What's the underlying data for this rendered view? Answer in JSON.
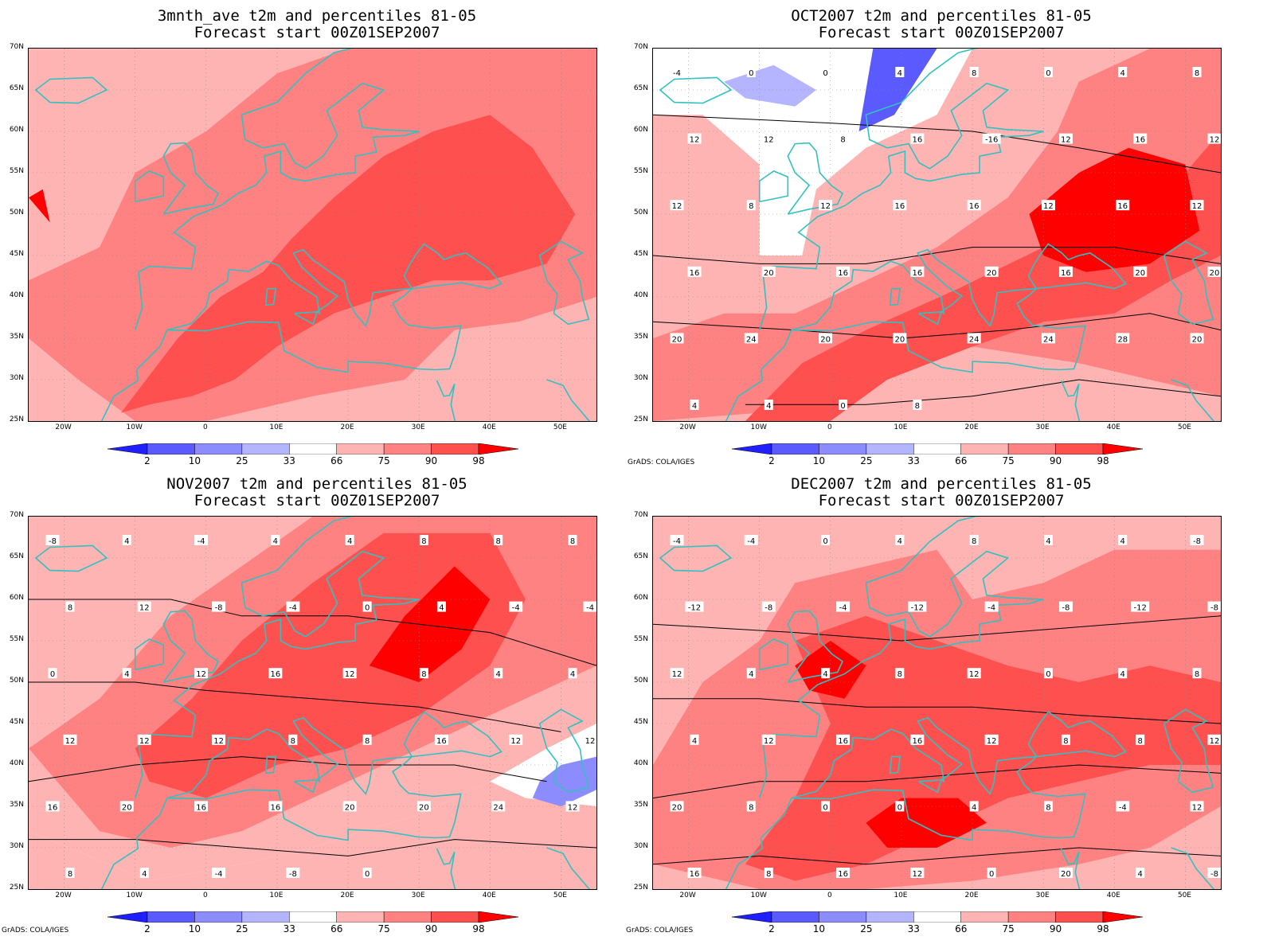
{
  "colors": {
    "coast": "#33c0c0",
    "contour": "#000000",
    "below_2": "#2020ff",
    "below_10": "#5a5aff",
    "below_25": "#8c8cff",
    "below_33": "#b4b4ff",
    "above_66": "#ffb4b4",
    "above_75": "#ff8282",
    "above_90": "#ff5050",
    "above_98": "#ff0000"
  },
  "lat_labels": [
    "70N",
    "65N",
    "60N",
    "55N",
    "50N",
    "45N",
    "40N",
    "35N",
    "30N",
    "25N"
  ],
  "lon_labels": [
    "20W",
    "10W",
    "0",
    "10E",
    "20E",
    "30E",
    "40E",
    "50E"
  ],
  "colorbar": {
    "labels": [
      "2",
      "10",
      "25",
      "33",
      "66",
      "75",
      "90",
      "98"
    ]
  },
  "credit": "GrADS: COLA/IGES",
  "panels": [
    {
      "title_line1": "3mnth_ave t2m and percentiles 81-05",
      "title_line2": "Forecast start 00Z01SEP2007",
      "contour_labels": []
    },
    {
      "title_line1": "OCT2007 t2m and percentiles 81-05",
      "title_line2": "Forecast start 00Z01SEP2007",
      "contour_labels": [
        "-4",
        "0",
        "0",
        "4",
        "8",
        "0",
        "4",
        "8",
        "12",
        "12",
        "8",
        "16",
        "-16",
        "12",
        "16",
        "12",
        "12",
        "8",
        "12",
        "16",
        "16",
        "12",
        "16",
        "12",
        "16",
        "20",
        "16",
        "16",
        "20",
        "16",
        "20",
        "20",
        "20",
        "24",
        "20",
        "20",
        "24",
        "24",
        "28",
        "20",
        "4",
        "4",
        "0",
        "8"
      ]
    },
    {
      "title_line1": "NOV2007 t2m and percentiles 81-05",
      "title_line2": "Forecast start 00Z01SEP2007",
      "contour_labels": [
        "-8",
        "4",
        "-4",
        "4",
        "4",
        "8",
        "8",
        "8",
        "8",
        "12",
        "-8",
        "-4",
        "0",
        "4",
        "-4",
        "-4",
        "0",
        "4",
        "12",
        "16",
        "12",
        "8",
        "4",
        "4",
        "12",
        "12",
        "12",
        "8",
        "8",
        "16",
        "12",
        "12",
        "16",
        "20",
        "16",
        "16",
        "20",
        "20",
        "24",
        "12",
        "8",
        "4",
        "-4",
        "-8",
        "0"
      ]
    },
    {
      "title_line1": "DEC2007 t2m and percentiles 81-05",
      "title_line2": "Forecast start 00Z01SEP2007",
      "contour_labels": [
        "-4",
        "-4",
        "0",
        "4",
        "8",
        "4",
        "4",
        "-8",
        "-12",
        "-8",
        "-4",
        "-12",
        "-4",
        "-8",
        "-12",
        "-8",
        "12",
        "4",
        "4",
        "8",
        "12",
        "0",
        "4",
        "8",
        "4",
        "12",
        "16",
        "16",
        "12",
        "8",
        "8",
        "12",
        "20",
        "8",
        "0",
        "0",
        "4",
        "8",
        "-4",
        "12",
        "16",
        "8",
        "16",
        "12",
        "0",
        "20",
        "4",
        "-8"
      ]
    }
  ]
}
